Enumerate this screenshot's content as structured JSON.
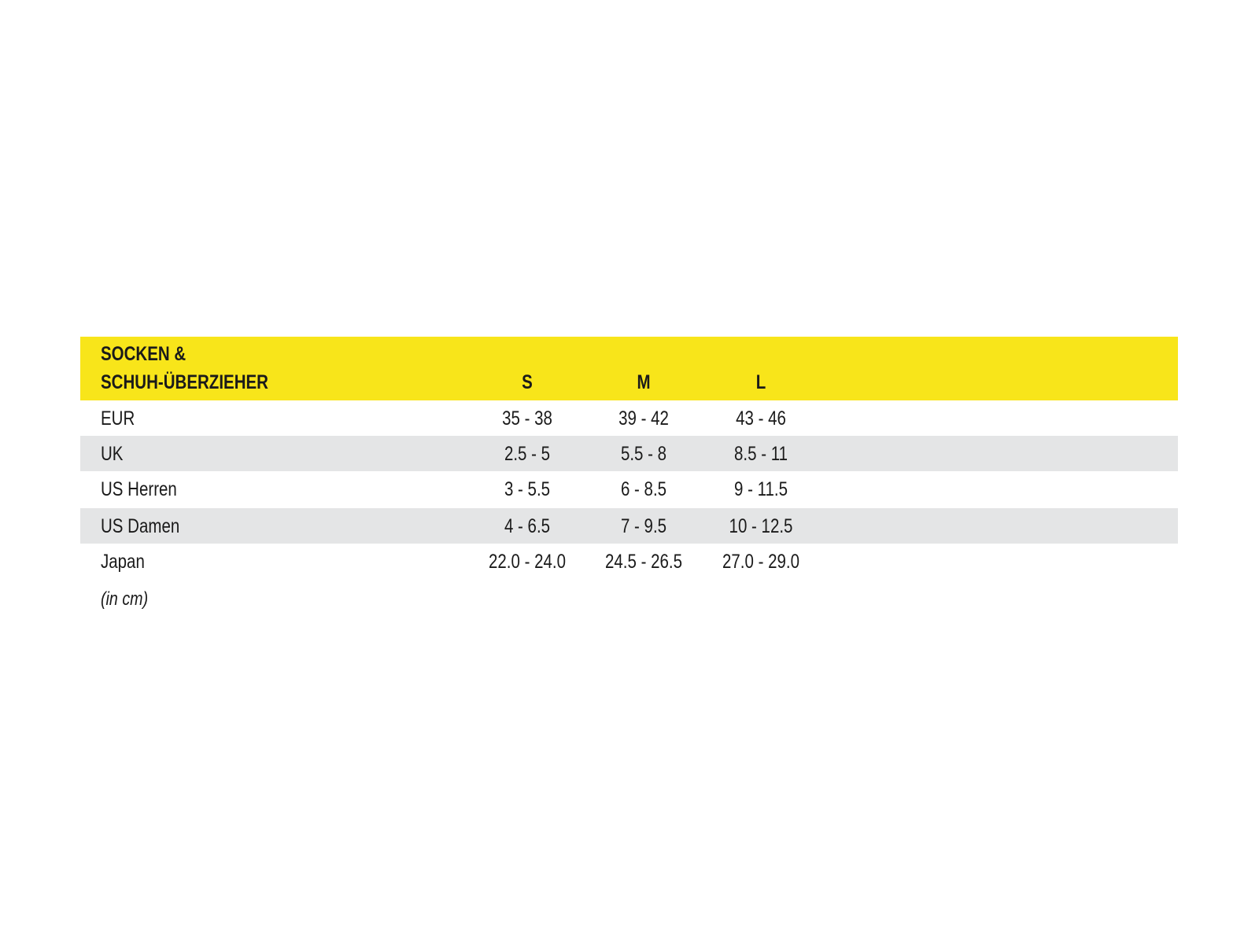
{
  "header": {
    "title_line1": "SOCKEN &",
    "title_line2": "SCHUH-ÜBERZIEHER",
    "sizes": [
      "S",
      "M",
      "L"
    ]
  },
  "rows": [
    {
      "label": "EUR",
      "values": [
        "35 - 38",
        "39 - 42",
        "43 - 46"
      ]
    },
    {
      "label": "UK",
      "values": [
        "2.5 - 5",
        "5.5 - 8",
        "8.5 - 11"
      ]
    },
    {
      "label": "US Herren",
      "values": [
        "3 - 5.5",
        "6 - 8.5",
        "9 - 11.5"
      ]
    },
    {
      "label": "US Damen",
      "values": [
        "4 - 6.5",
        "7 - 9.5",
        "10 - 12.5"
      ]
    },
    {
      "label": "Japan",
      "values": [
        "22.0 - 24.0",
        "24.5 - 26.5",
        "27.0 - 29.0"
      ]
    }
  ],
  "note": "(in cm)",
  "colors": {
    "header_bg": "#f8e51a",
    "stripe_bg": "#e4e5e6"
  }
}
